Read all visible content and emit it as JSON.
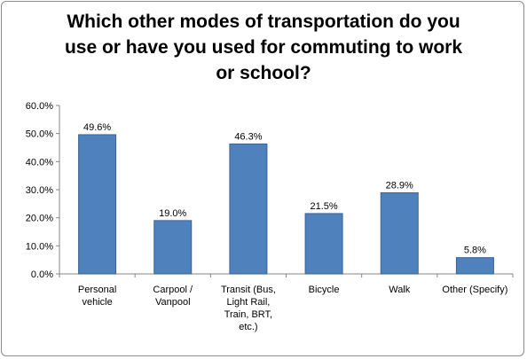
{
  "chart_data": {
    "type": "bar",
    "title": "Which other modes of transportation do you use or have you used for commuting to work or school?",
    "title_lines": [
      "Which other modes of transportation do you",
      "use or have you used for commuting to work",
      "or school?"
    ],
    "categories": [
      [
        "Personal",
        "vehicle"
      ],
      [
        "Carpool /",
        "Vanpool"
      ],
      [
        "Transit (Bus,",
        "Light Rail,",
        "Train, BRT,",
        "etc.)"
      ],
      [
        "Bicycle"
      ],
      [
        "Walk"
      ],
      [
        "Other (Specify)"
      ]
    ],
    "values": [
      49.6,
      19.0,
      46.3,
      21.5,
      28.9,
      5.8
    ],
    "value_labels": [
      "49.6%",
      "19.0%",
      "46.3%",
      "21.5%",
      "28.9%",
      "5.8%"
    ],
    "y_ticks": [
      "0.0%",
      "10.0%",
      "20.0%",
      "30.0%",
      "40.0%",
      "50.0%",
      "60.0%"
    ],
    "ylim": [
      0,
      60
    ],
    "xlabel": "",
    "ylabel": "",
    "grid": false,
    "legend": "none",
    "colors": {
      "bar_fill": "#4f81bd",
      "bar_edge": "#3a6496",
      "axis": "#868686"
    }
  }
}
